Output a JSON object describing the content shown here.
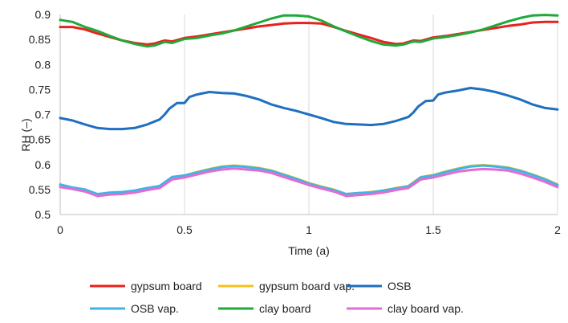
{
  "chart_data": {
    "type": "line",
    "title": "",
    "xlabel": "Time (a)",
    "ylabel": "RH (–)",
    "xlim": [
      0,
      2
    ],
    "ylim": [
      0.5,
      0.9
    ],
    "x_ticks": [
      "0",
      "0.5",
      "1",
      "1.5",
      "2"
    ],
    "y_ticks": [
      "0.5",
      "0.55",
      "0.6",
      "0.65",
      "0.7",
      "0.75",
      "0.8",
      "0.85",
      "0.9"
    ],
    "grid": "vertical",
    "legend_position": "bottom",
    "series": [
      {
        "name": "gypsum board",
        "color": "#e8211d",
        "x": [
          0,
          0.05,
          0.1,
          0.15,
          0.2,
          0.25,
          0.3,
          0.35,
          0.38,
          0.42,
          0.45,
          0.5,
          0.55,
          0.6,
          0.65,
          0.7,
          0.75,
          0.8,
          0.85,
          0.9,
          0.95,
          1.0,
          1.05,
          1.1,
          1.15,
          1.2,
          1.25,
          1.3,
          1.35,
          1.38,
          1.42,
          1.45,
          1.5,
          1.55,
          1.6,
          1.65,
          1.7,
          1.75,
          1.8,
          1.85,
          1.9,
          1.95,
          2.0
        ],
        "y": [
          0.875,
          0.875,
          0.87,
          0.862,
          0.855,
          0.848,
          0.843,
          0.84,
          0.842,
          0.848,
          0.846,
          0.853,
          0.856,
          0.86,
          0.864,
          0.868,
          0.872,
          0.876,
          0.879,
          0.882,
          0.883,
          0.883,
          0.882,
          0.875,
          0.867,
          0.86,
          0.853,
          0.845,
          0.841,
          0.842,
          0.848,
          0.847,
          0.854,
          0.857,
          0.861,
          0.865,
          0.869,
          0.873,
          0.877,
          0.88,
          0.884,
          0.885,
          0.885
        ]
      },
      {
        "name": "gypsum board vap.",
        "color": "#f5c11e",
        "x": [
          0,
          0.05,
          0.1,
          0.15,
          0.2,
          0.25,
          0.3,
          0.35,
          0.4,
          0.45,
          0.5,
          0.55,
          0.6,
          0.65,
          0.7,
          0.75,
          0.8,
          0.85,
          0.9,
          0.95,
          1.0,
          1.05,
          1.1,
          1.15,
          1.2,
          1.25,
          1.3,
          1.35,
          1.4,
          1.45,
          1.5,
          1.55,
          1.6,
          1.65,
          1.7,
          1.75,
          1.8,
          1.85,
          1.9,
          1.95,
          2.0
        ],
        "y": [
          0.558,
          0.553,
          0.549,
          0.54,
          0.543,
          0.544,
          0.547,
          0.552,
          0.556,
          0.574,
          0.578,
          0.585,
          0.591,
          0.596,
          0.598,
          0.596,
          0.593,
          0.588,
          0.58,
          0.572,
          0.563,
          0.556,
          0.55,
          0.541,
          0.543,
          0.545,
          0.548,
          0.553,
          0.557,
          0.575,
          0.579,
          0.586,
          0.592,
          0.597,
          0.599,
          0.597,
          0.594,
          0.588,
          0.58,
          0.571,
          0.56
        ]
      },
      {
        "name": "OSB",
        "color": "#1f6fc0",
        "x": [
          0,
          0.05,
          0.1,
          0.15,
          0.2,
          0.25,
          0.3,
          0.35,
          0.4,
          0.42,
          0.44,
          0.47,
          0.5,
          0.52,
          0.55,
          0.6,
          0.65,
          0.7,
          0.75,
          0.8,
          0.85,
          0.9,
          0.95,
          1.0,
          1.05,
          1.1,
          1.15,
          1.2,
          1.25,
          1.3,
          1.35,
          1.4,
          1.42,
          1.44,
          1.47,
          1.5,
          1.52,
          1.55,
          1.6,
          1.65,
          1.7,
          1.75,
          1.8,
          1.85,
          1.9,
          1.95,
          2.0
        ],
        "y": [
          0.693,
          0.688,
          0.68,
          0.673,
          0.671,
          0.671,
          0.673,
          0.68,
          0.69,
          0.7,
          0.712,
          0.723,
          0.723,
          0.735,
          0.74,
          0.745,
          0.743,
          0.742,
          0.737,
          0.73,
          0.72,
          0.713,
          0.707,
          0.7,
          0.693,
          0.685,
          0.681,
          0.68,
          0.679,
          0.681,
          0.687,
          0.695,
          0.704,
          0.716,
          0.727,
          0.728,
          0.74,
          0.744,
          0.748,
          0.753,
          0.75,
          0.745,
          0.738,
          0.73,
          0.72,
          0.713,
          0.71
        ]
      },
      {
        "name": "OSB vap.",
        "color": "#3bb6e6",
        "x": [
          0,
          0.05,
          0.1,
          0.15,
          0.2,
          0.25,
          0.3,
          0.35,
          0.4,
          0.45,
          0.5,
          0.55,
          0.6,
          0.65,
          0.7,
          0.75,
          0.8,
          0.85,
          0.9,
          0.95,
          1.0,
          1.05,
          1.1,
          1.15,
          1.2,
          1.25,
          1.3,
          1.35,
          1.4,
          1.45,
          1.5,
          1.55,
          1.6,
          1.65,
          1.7,
          1.75,
          1.8,
          1.85,
          1.9,
          1.95,
          2.0
        ],
        "y": [
          0.56,
          0.554,
          0.55,
          0.541,
          0.544,
          0.545,
          0.548,
          0.553,
          0.557,
          0.575,
          0.578,
          0.584,
          0.59,
          0.595,
          0.597,
          0.595,
          0.592,
          0.587,
          0.579,
          0.571,
          0.562,
          0.555,
          0.549,
          0.541,
          0.543,
          0.544,
          0.548,
          0.552,
          0.556,
          0.574,
          0.578,
          0.585,
          0.591,
          0.596,
          0.598,
          0.596,
          0.593,
          0.587,
          0.579,
          0.57,
          0.559
        ]
      },
      {
        "name": "clay board",
        "color": "#21a83a",
        "x": [
          0,
          0.05,
          0.1,
          0.15,
          0.2,
          0.25,
          0.3,
          0.35,
          0.38,
          0.42,
          0.45,
          0.5,
          0.55,
          0.6,
          0.65,
          0.7,
          0.75,
          0.8,
          0.85,
          0.9,
          0.95,
          1.0,
          1.05,
          1.1,
          1.15,
          1.2,
          1.25,
          1.3,
          1.35,
          1.38,
          1.42,
          1.45,
          1.5,
          1.55,
          1.6,
          1.65,
          1.7,
          1.75,
          1.8,
          1.85,
          1.9,
          1.95,
          2.0
        ],
        "y": [
          0.889,
          0.885,
          0.875,
          0.867,
          0.857,
          0.848,
          0.841,
          0.836,
          0.838,
          0.845,
          0.843,
          0.851,
          0.853,
          0.858,
          0.862,
          0.868,
          0.876,
          0.884,
          0.892,
          0.898,
          0.898,
          0.896,
          0.888,
          0.876,
          0.866,
          0.856,
          0.847,
          0.84,
          0.838,
          0.84,
          0.846,
          0.845,
          0.852,
          0.855,
          0.859,
          0.864,
          0.87,
          0.878,
          0.886,
          0.893,
          0.898,
          0.899,
          0.898
        ]
      },
      {
        "name": "clay board vap.",
        "color": "#e36cd2",
        "x": [
          0,
          0.05,
          0.1,
          0.15,
          0.2,
          0.25,
          0.3,
          0.35,
          0.4,
          0.45,
          0.5,
          0.55,
          0.6,
          0.65,
          0.7,
          0.75,
          0.8,
          0.85,
          0.9,
          0.95,
          1.0,
          1.05,
          1.1,
          1.15,
          1.2,
          1.25,
          1.3,
          1.35,
          1.4,
          1.45,
          1.5,
          1.55,
          1.6,
          1.65,
          1.7,
          1.75,
          1.8,
          1.85,
          1.9,
          1.95,
          2.0
        ],
        "y": [
          0.555,
          0.551,
          0.546,
          0.537,
          0.54,
          0.541,
          0.544,
          0.549,
          0.553,
          0.57,
          0.574,
          0.58,
          0.586,
          0.59,
          0.592,
          0.59,
          0.588,
          0.583,
          0.575,
          0.567,
          0.559,
          0.552,
          0.546,
          0.537,
          0.539,
          0.541,
          0.544,
          0.549,
          0.553,
          0.57,
          0.574,
          0.58,
          0.586,
          0.589,
          0.591,
          0.59,
          0.588,
          0.582,
          0.574,
          0.565,
          0.555
        ]
      }
    ]
  }
}
